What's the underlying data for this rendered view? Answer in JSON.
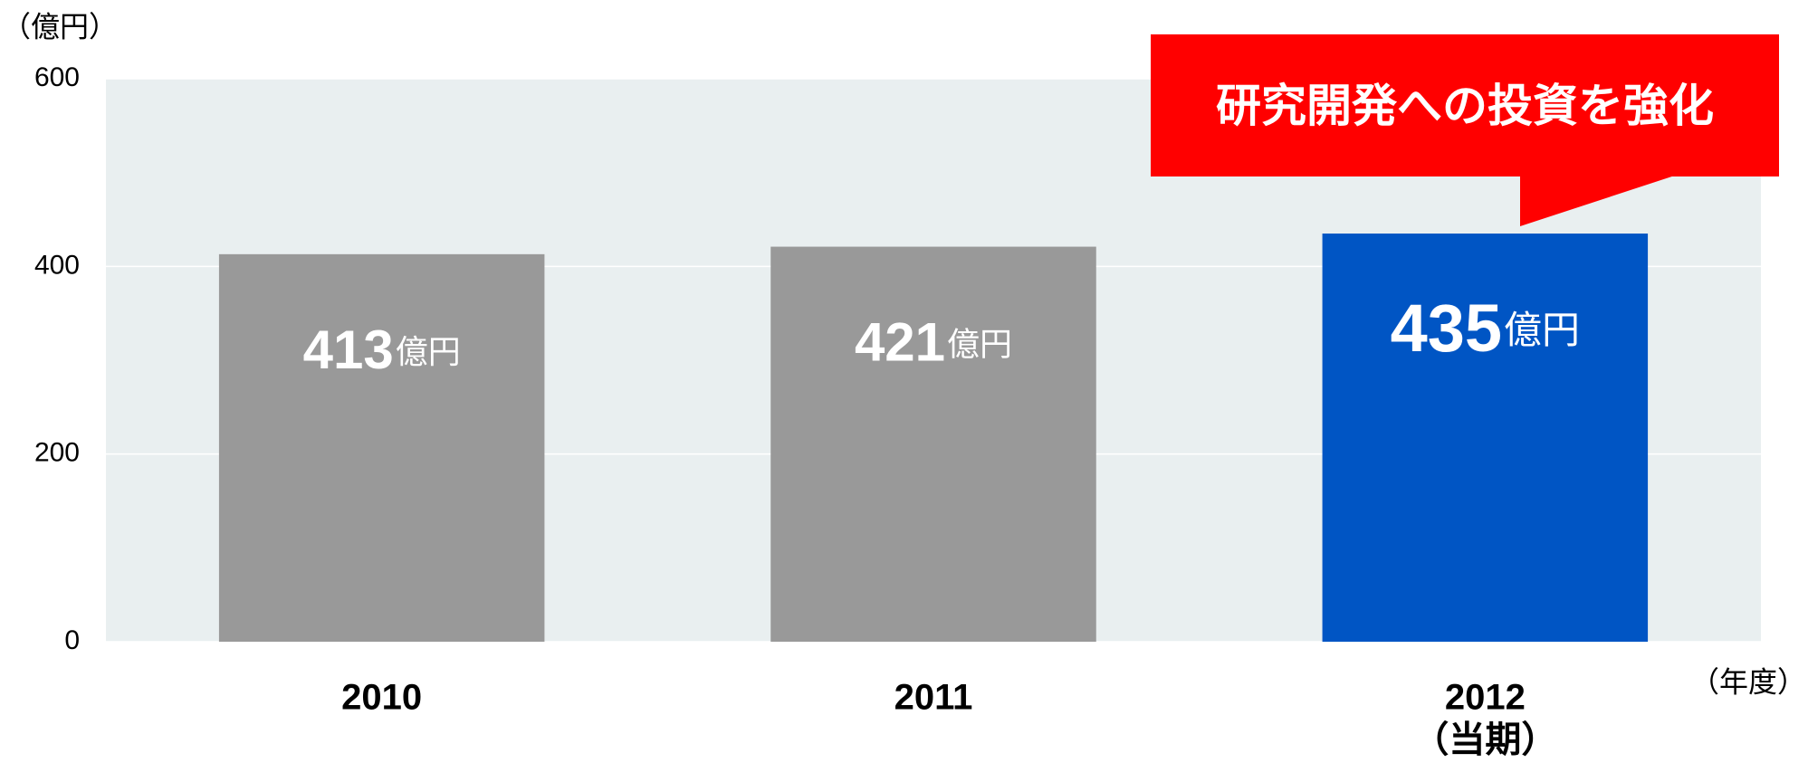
{
  "chart_data": {
    "type": "bar",
    "y_unit_label": "（億円）",
    "x_unit_label": "（年度）",
    "categories": [
      "2010",
      "2011",
      "2012"
    ],
    "category_notes": [
      null,
      null,
      "（当期）"
    ],
    "values": [
      413,
      421,
      435
    ],
    "value_unit": "億円",
    "colors": [
      "#999999",
      "#999999",
      "#0055c4"
    ],
    "ylim": [
      0,
      600
    ],
    "yticks": [
      0,
      200,
      400,
      600
    ],
    "grid": true,
    "annotation": "研究開発への投資を強化",
    "annotation_color": "#ff0000"
  }
}
